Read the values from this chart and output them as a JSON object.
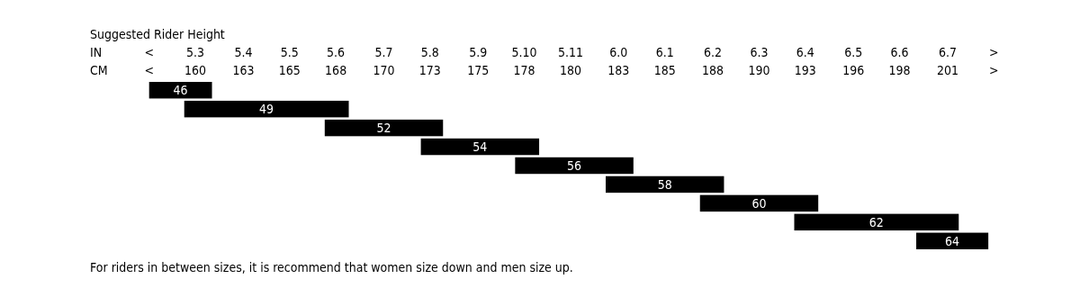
{
  "chart_data": {
    "type": "bar",
    "orientation": "horizontal",
    "title": "Suggested Rider Height",
    "xlabel": "CM",
    "x2label": "IN",
    "categories": [
      "46",
      "49",
      "52",
      "54",
      "56",
      "58",
      "60",
      "62",
      "64"
    ],
    "base": [
      157.5,
      159.4,
      167,
      172.2,
      177.3,
      182.2,
      187.3,
      192.4,
      199
    ],
    "values": [
      3.4,
      8.9,
      6.4,
      6.4,
      6.4,
      6.4,
      6.4,
      8.9,
      3.9
    ],
    "color": "#000000",
    "xlim": [
      157.5,
      203.2
    ],
    "xticks": [
      {
        "value": 157.5,
        "label": "<"
      },
      {
        "value": 160.0,
        "label": "160"
      },
      {
        "value": 162.6,
        "label": "163"
      },
      {
        "value": 165.1,
        "label": "165"
      },
      {
        "value": 167.6,
        "label": "168"
      },
      {
        "value": 170.2,
        "label": "170"
      },
      {
        "value": 172.7,
        "label": "173"
      },
      {
        "value": 175.3,
        "label": "175"
      },
      {
        "value": 177.8,
        "label": "178"
      },
      {
        "value": 180.3,
        "label": "180"
      },
      {
        "value": 182.9,
        "label": "183"
      },
      {
        "value": 185.4,
        "label": "185"
      },
      {
        "value": 188.0,
        "label": "188"
      },
      {
        "value": 190.5,
        "label": "190"
      },
      {
        "value": 193.0,
        "label": "193"
      },
      {
        "value": 195.6,
        "label": "196"
      },
      {
        "value": 198.1,
        "label": "198"
      },
      {
        "value": 200.7,
        "label": "201"
      },
      {
        "value": 203.2,
        "label": ">"
      }
    ],
    "annotations": [
      "<",
      "5.3",
      "5.4",
      "5.5",
      "5.6",
      "5.7",
      "5.8",
      "5.9",
      "5.10",
      "5.11",
      "6.0",
      "6.1",
      "6.2",
      "6.3",
      "6.4",
      "6.5",
      "6.6",
      "6.7",
      ">",
      "For riders in between sizes, it is recommend that women size down and men size up."
    ]
  }
}
